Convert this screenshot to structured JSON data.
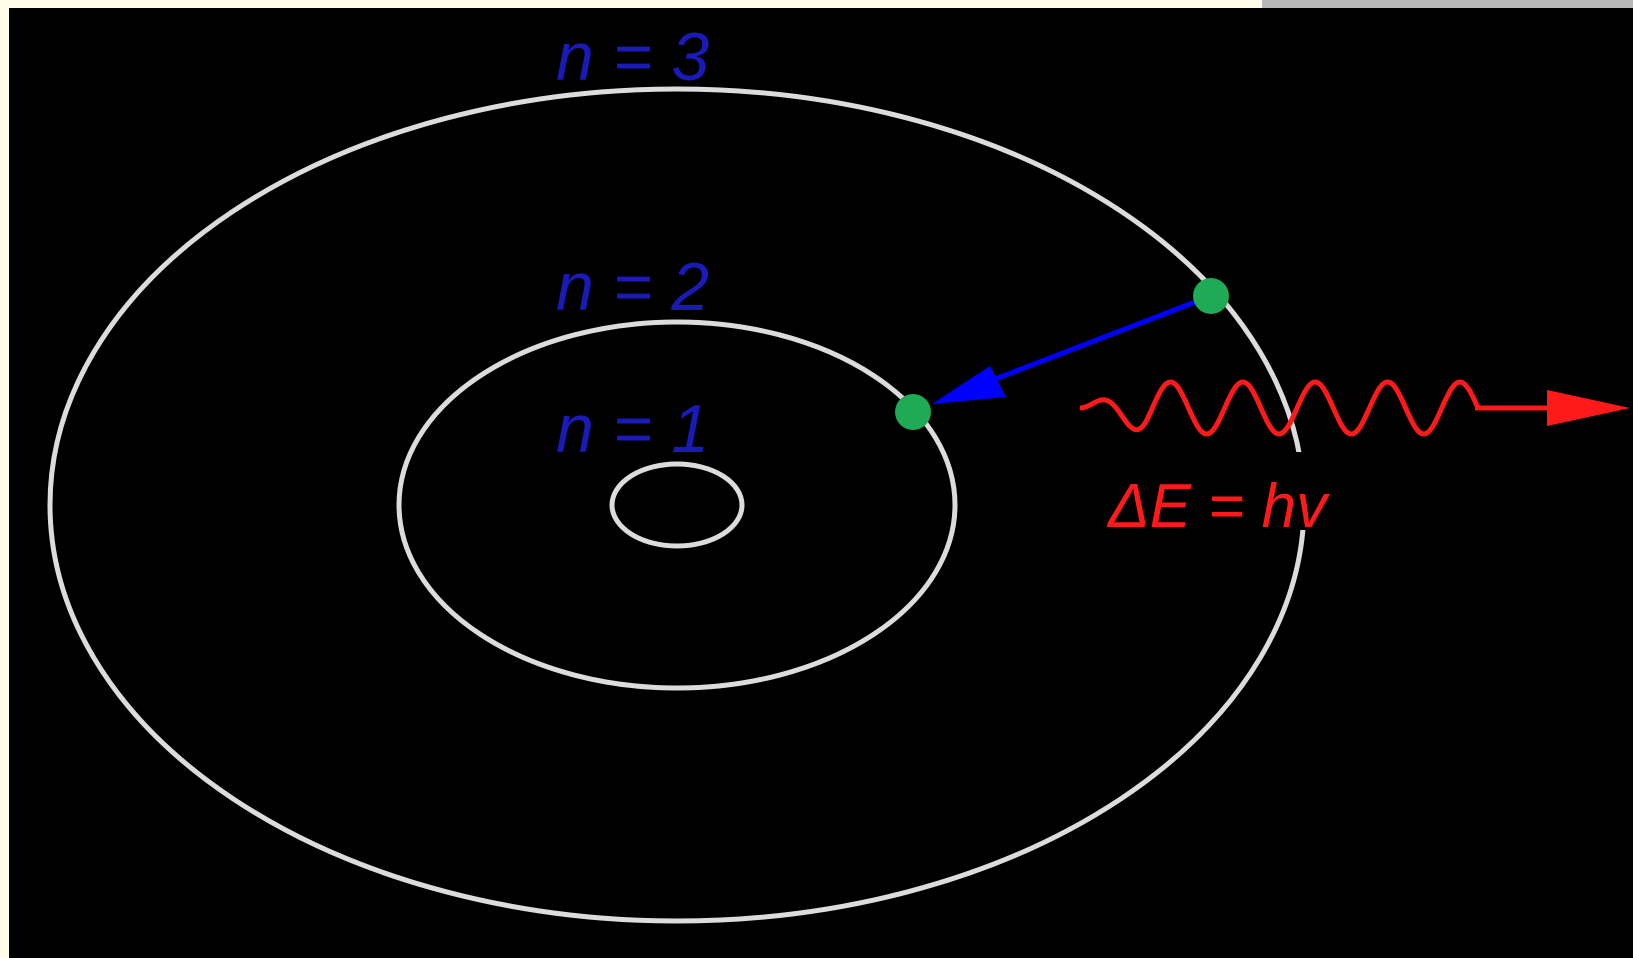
{
  "colors": {
    "page_background": "#fffdea",
    "panel_background": "#000000",
    "corner_bar": "#b8b8b8",
    "orbit": "#dcdcdc",
    "level_label": "#1a1ab8",
    "electron": "#1faa55",
    "transition_arrow": "#0000ff",
    "photon": "#ff1a1a"
  },
  "levels": [
    {
      "label": "n = 3"
    },
    {
      "label": "n = 2"
    },
    {
      "label": "n = 1"
    }
  ],
  "photon": {
    "equation": "ΔE = hv"
  },
  "icons": {
    "electron": "dot",
    "transition": "arrow",
    "photon": "wavy-arrow"
  }
}
